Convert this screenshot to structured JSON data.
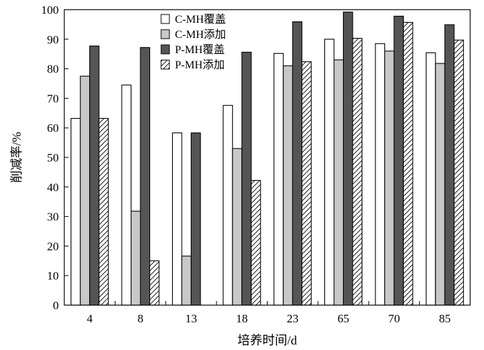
{
  "chart_data": {
    "type": "bar",
    "title": "",
    "xlabel": "培养时间/d",
    "ylabel": "削减率/%",
    "ylim": [
      0,
      100
    ],
    "yticks": [
      0,
      10,
      20,
      30,
      40,
      50,
      60,
      70,
      80,
      90,
      100
    ],
    "grid": false,
    "legend_position": "top-center",
    "categories": [
      "4",
      "8",
      "13",
      "18",
      "23",
      "65",
      "70",
      "85"
    ],
    "series": [
      {
        "name": "C-MH覆盖",
        "fill": "#ffffff",
        "pattern": "none",
        "values": [
          63.2,
          74.5,
          58.3,
          67.6,
          85.2,
          90.0,
          88.5,
          85.4
        ]
      },
      {
        "name": "C-MH添加",
        "fill": "#c8c8c8",
        "pattern": "none",
        "values": [
          77.5,
          31.8,
          16.6,
          53.0,
          81.0,
          83.0,
          86.0,
          81.8
        ]
      },
      {
        "name": "P-MH覆盖",
        "fill": "#555555",
        "pattern": "none",
        "values": [
          87.7,
          87.2,
          58.3,
          85.6,
          95.9,
          99.2,
          97.8,
          94.9
        ]
      },
      {
        "name": "P-MH添加",
        "fill": "#ffffff",
        "pattern": "hatch",
        "values": [
          63.2,
          15.0,
          0,
          42.2,
          82.4,
          90.3,
          95.7,
          89.7
        ]
      }
    ]
  }
}
